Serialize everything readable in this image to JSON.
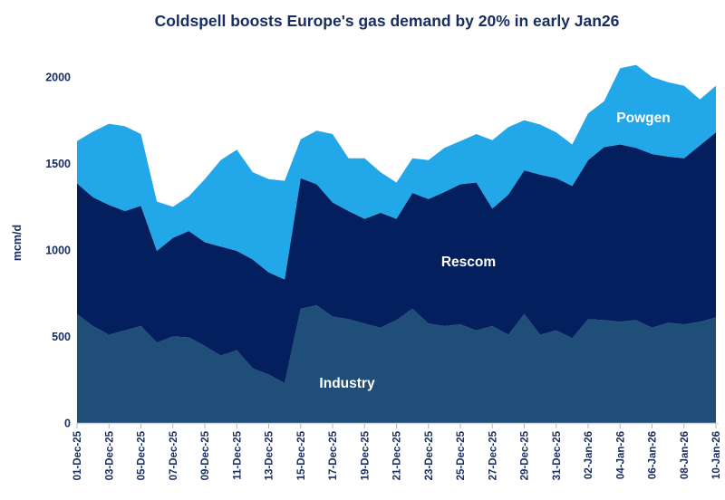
{
  "title": "Coldspell boosts Europe's gas demand by 20% in early Jan26",
  "colors": {
    "industry": "#1f4e79",
    "rescom": "#041f5e",
    "powgen": "#22a7e8",
    "text_navy": "#182d62",
    "axis_line": "#d6d6d6",
    "tick_mark": "#b7b7b7",
    "background": "#ffffff"
  },
  "chart_data": {
    "type": "area",
    "stacked": true,
    "title": "Coldspell boosts Europe's gas demand by 20% in early Jan26",
    "xlabel": "",
    "ylabel": "mcm/d",
    "ylim": [
      0,
      2000
    ],
    "yticks": [
      0,
      500,
      1000,
      1500,
      2000
    ],
    "grid": false,
    "legend": "labels drawn inside areas",
    "x": [
      "01-Dec-25",
      "02-Dec-25",
      "03-Dec-25",
      "04-Dec-25",
      "05-Dec-25",
      "06-Dec-25",
      "07-Dec-25",
      "08-Dec-25",
      "09-Dec-25",
      "10-Dec-25",
      "11-Dec-25",
      "12-Dec-25",
      "13-Dec-25",
      "14-Dec-25",
      "15-Dec-25",
      "16-Dec-25",
      "17-Dec-25",
      "18-Dec-25",
      "19-Dec-25",
      "20-Dec-25",
      "21-Dec-25",
      "22-Dec-25",
      "23-Dec-25",
      "24-Dec-25",
      "25-Dec-25",
      "26-Dec-25",
      "27-Dec-25",
      "28-Dec-25",
      "29-Dec-25",
      "30-Dec-25",
      "31-Dec-25",
      "01-Jan-26",
      "02-Jan-26",
      "03-Jan-26",
      "04-Jan-26",
      "05-Jan-26",
      "06-Jan-26",
      "07-Jan-26",
      "08-Jan-26",
      "09-Jan-26",
      "10-Jan-26"
    ],
    "x_tick_labels": [
      "01-Dec-25",
      "03-Dec-25",
      "05-Dec-25",
      "07-Dec-25",
      "09-Dec-25",
      "11-Dec-25",
      "13-Dec-25",
      "15-Dec-25",
      "17-Dec-25",
      "19-Dec-25",
      "21-Dec-25",
      "23-Dec-25",
      "25-Dec-25",
      "27-Dec-25",
      "29-Dec-25",
      "31-Dec-25",
      "02-Jan-26",
      "04-Jan-26",
      "06-Jan-26",
      "08-Jan-26",
      "10-Jan-26"
    ],
    "series": [
      {
        "name": "Industry",
        "color": "#1f4e79",
        "values": [
          630,
          560,
          510,
          535,
          560,
          465,
          500,
          495,
          445,
          390,
          420,
          315,
          280,
          230,
          660,
          680,
          615,
          600,
          575,
          550,
          595,
          660,
          575,
          560,
          570,
          535,
          560,
          510,
          630,
          510,
          535,
          490,
          600,
          595,
          585,
          595,
          550,
          580,
          570,
          585,
          610
        ]
      },
      {
        "name": "Rescom",
        "color": "#041f5e",
        "values": [
          755,
          745,
          750,
          690,
          695,
          530,
          570,
          615,
          600,
          630,
          575,
          630,
          590,
          600,
          755,
          700,
          660,
          625,
          605,
          665,
          585,
          670,
          720,
          775,
          810,
          855,
          680,
          810,
          830,
          925,
          880,
          880,
          920,
          1000,
          1025,
          995,
          1005,
          960,
          960,
          1020,
          1070
        ]
      },
      {
        "name": "Powgen",
        "color": "#22a7e8",
        "values": [
          245,
          380,
          470,
          490,
          415,
          285,
          180,
          200,
          365,
          500,
          585,
          505,
          540,
          570,
          225,
          310,
          395,
          305,
          350,
          235,
          210,
          200,
          225,
          255,
          250,
          280,
          395,
          390,
          290,
          290,
          265,
          240,
          270,
          265,
          440,
          480,
          445,
          430,
          420,
          265,
          270
        ]
      }
    ]
  },
  "series_labels": {
    "industry": "Industry",
    "rescom": "Rescom",
    "powgen": "Powgen"
  }
}
